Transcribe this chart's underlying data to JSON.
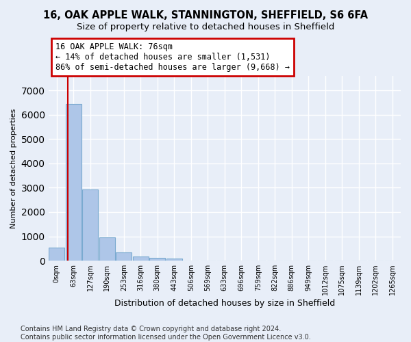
{
  "title_line1": "16, OAK APPLE WALK, STANNINGTON, SHEFFIELD, S6 6FA",
  "title_line2": "Size of property relative to detached houses in Sheffield",
  "xlabel": "Distribution of detached houses by size in Sheffield",
  "ylabel": "Number of detached properties",
  "footnote": "Contains HM Land Registry data © Crown copyright and database right 2024.\nContains public sector information licensed under the Open Government Licence v3.0.",
  "bar_labels": [
    "0sqm",
    "63sqm",
    "127sqm",
    "190sqm",
    "253sqm",
    "316sqm",
    "380sqm",
    "443sqm",
    "506sqm",
    "569sqm",
    "633sqm",
    "696sqm",
    "759sqm",
    "822sqm",
    "886sqm",
    "949sqm",
    "1012sqm",
    "1075sqm",
    "1139sqm",
    "1202sqm",
    "1265sqm"
  ],
  "bar_heights": [
    550,
    6450,
    2920,
    970,
    340,
    165,
    110,
    75,
    0,
    0,
    0,
    0,
    0,
    0,
    0,
    0,
    0,
    0,
    0,
    0,
    0
  ],
  "bar_color": "#aec6e8",
  "bar_edge_color": "#7aaad0",
  "marker_bin_index": 1,
  "marker_color": "#cc0000",
  "annotation_line1": "16 OAK APPLE WALK: 76sqm",
  "annotation_line2": "← 14% of detached houses are smaller (1,531)",
  "annotation_line3": "86% of semi-detached houses are larger (9,668) →",
  "annotation_box_color": "#ffffff",
  "annotation_box_edge": "#cc0000",
  "ylim": [
    0,
    7600
  ],
  "yticks": [
    0,
    1000,
    2000,
    3000,
    4000,
    5000,
    6000,
    7000
  ],
  "background_color": "#e8eef8",
  "grid_color": "#ffffff",
  "title_fontsize": 10.5,
  "subtitle_fontsize": 9.5,
  "annotation_fontsize": 8.5,
  "ylabel_fontsize": 8,
  "xlabel_fontsize": 9,
  "footnote_fontsize": 7
}
